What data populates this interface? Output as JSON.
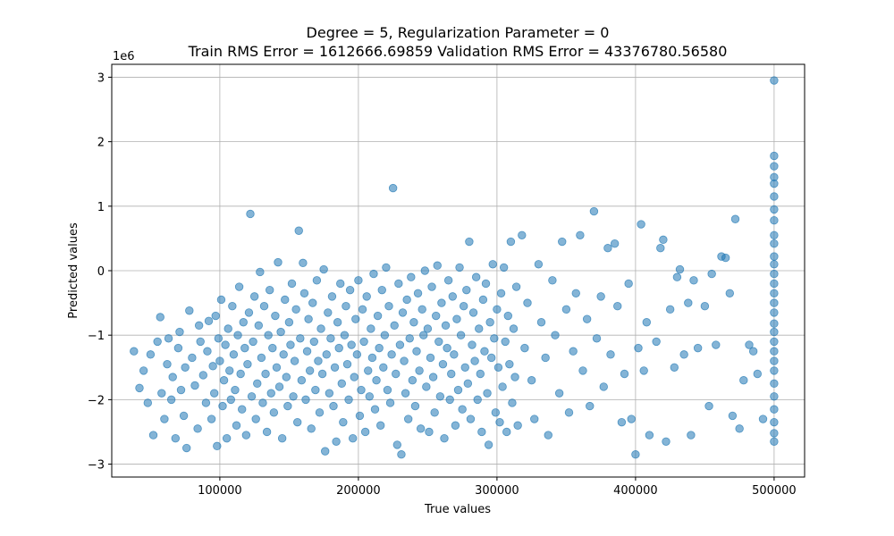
{
  "chart_data": {
    "type": "scatter",
    "title_lines": [
      "Degree = 5, Regularization Parameter = 0",
      "Train RMS Error = 1612666.69859 Validation RMS Error = 43376780.56580"
    ],
    "xlabel": "True values",
    "ylabel": "Predicted values",
    "y_offset_label": "1e6",
    "xlim": [
      22000,
      522000
    ],
    "ylim": [
      -3.2,
      3.2
    ],
    "x_ticks": [
      100000,
      200000,
      300000,
      400000,
      500000
    ],
    "x_tick_labels": [
      "100000",
      "200000",
      "300000",
      "400000",
      "500000"
    ],
    "y_ticks": [
      -3,
      -2,
      -1,
      0,
      1,
      2,
      3
    ],
    "y_tick_labels": [
      "−3",
      "−2",
      "−1",
      "0",
      "1",
      "2",
      "3"
    ],
    "grid": true,
    "marker_color": "#1f77b4",
    "marker_alpha": 0.55,
    "points": [
      [
        38000,
        -1.25
      ],
      [
        42000,
        -1.82
      ],
      [
        45000,
        -1.55
      ],
      [
        48000,
        -2.05
      ],
      [
        50000,
        -1.3
      ],
      [
        52000,
        -2.55
      ],
      [
        55000,
        -1.1
      ],
      [
        57000,
        -0.72
      ],
      [
        58000,
        -1.9
      ],
      [
        60000,
        -2.3
      ],
      [
        62000,
        -1.45
      ],
      [
        63000,
        -1.05
      ],
      [
        65000,
        -2.0
      ],
      [
        66000,
        -1.65
      ],
      [
        68000,
        -2.6
      ],
      [
        70000,
        -1.2
      ],
      [
        71000,
        -0.95
      ],
      [
        72000,
        -1.85
      ],
      [
        74000,
        -2.25
      ],
      [
        75000,
        -1.5
      ],
      [
        76000,
        -2.75
      ],
      [
        78000,
        -0.62
      ],
      [
        80000,
        -1.35
      ],
      [
        82000,
        -1.78
      ],
      [
        84000,
        -2.45
      ],
      [
        85000,
        -0.85
      ],
      [
        86000,
        -1.1
      ],
      [
        88000,
        -1.62
      ],
      [
        90000,
        -2.05
      ],
      [
        91000,
        -1.25
      ],
      [
        92000,
        -0.78
      ],
      [
        94000,
        -2.3
      ],
      [
        95000,
        -1.48
      ],
      [
        96000,
        -1.9
      ],
      [
        97000,
        -0.7
      ],
      [
        98000,
        -2.72
      ],
      [
        99000,
        -1.05
      ],
      [
        100000,
        -1.4
      ],
      [
        101000,
        -0.45
      ],
      [
        102000,
        -2.1
      ],
      [
        103000,
        -1.7
      ],
      [
        104000,
        -1.15
      ],
      [
        105000,
        -2.6
      ],
      [
        106000,
        -0.9
      ],
      [
        107000,
        -1.55
      ],
      [
        108000,
        -2.0
      ],
      [
        109000,
        -0.55
      ],
      [
        110000,
        -1.3
      ],
      [
        111000,
        -1.85
      ],
      [
        112000,
        -2.4
      ],
      [
        113000,
        -1.0
      ],
      [
        114000,
        -0.25
      ],
      [
        115000,
        -1.6
      ],
      [
        116000,
        -2.15
      ],
      [
        117000,
        -0.8
      ],
      [
        118000,
        -1.2
      ],
      [
        119000,
        -2.55
      ],
      [
        120000,
        -1.45
      ],
      [
        121000,
        -0.65
      ],
      [
        122000,
        0.88
      ],
      [
        123000,
        -1.95
      ],
      [
        124000,
        -1.1
      ],
      [
        125000,
        -0.4
      ],
      [
        126000,
        -2.3
      ],
      [
        127000,
        -1.75
      ],
      [
        128000,
        -0.85
      ],
      [
        129000,
        -0.02
      ],
      [
        130000,
        -1.35
      ],
      [
        131000,
        -2.05
      ],
      [
        132000,
        -0.55
      ],
      [
        133000,
        -1.6
      ],
      [
        134000,
        -2.5
      ],
      [
        135000,
        -1.0
      ],
      [
        136000,
        -0.3
      ],
      [
        137000,
        -1.9
      ],
      [
        138000,
        -1.2
      ],
      [
        139000,
        -2.2
      ],
      [
        140000,
        -0.7
      ],
      [
        141000,
        -1.5
      ],
      [
        142000,
        0.13
      ],
      [
        143000,
        -1.8
      ],
      [
        144000,
        -0.95
      ],
      [
        145000,
        -2.6
      ],
      [
        146000,
        -1.3
      ],
      [
        147000,
        -0.45
      ],
      [
        148000,
        -1.65
      ],
      [
        149000,
        -2.1
      ],
      [
        150000,
        -0.8
      ],
      [
        151000,
        -1.15
      ],
      [
        152000,
        -0.2
      ],
      [
        153000,
        -1.95
      ],
      [
        154000,
        -1.4
      ],
      [
        155000,
        -0.6
      ],
      [
        156000,
        -2.35
      ],
      [
        157000,
        0.62
      ],
      [
        158000,
        -1.05
      ],
      [
        159000,
        -1.7
      ],
      [
        160000,
        0.12
      ],
      [
        161000,
        -0.35
      ],
      [
        162000,
        -2.0
      ],
      [
        163000,
        -1.25
      ],
      [
        164000,
        -0.75
      ],
      [
        165000,
        -1.55
      ],
      [
        166000,
        -2.45
      ],
      [
        167000,
        -0.5
      ],
      [
        168000,
        -1.1
      ],
      [
        169000,
        -1.85
      ],
      [
        170000,
        -0.15
      ],
      [
        171000,
        -1.4
      ],
      [
        172000,
        -2.2
      ],
      [
        173000,
        -0.9
      ],
      [
        174000,
        -1.6
      ],
      [
        175000,
        0.02
      ],
      [
        176000,
        -2.8
      ],
      [
        177000,
        -1.3
      ],
      [
        178000,
        -0.65
      ],
      [
        179000,
        -1.9
      ],
      [
        180000,
        -1.05
      ],
      [
        181000,
        -0.4
      ],
      [
        182000,
        -2.1
      ],
      [
        183000,
        -1.5
      ],
      [
        184000,
        -2.65
      ],
      [
        185000,
        -0.8
      ],
      [
        186000,
        -1.2
      ],
      [
        187000,
        -0.2
      ],
      [
        188000,
        -1.75
      ],
      [
        189000,
        -2.35
      ],
      [
        190000,
        -1.0
      ],
      [
        191000,
        -0.55
      ],
      [
        192000,
        -1.45
      ],
      [
        193000,
        -2.0
      ],
      [
        194000,
        -0.3
      ],
      [
        195000,
        -1.15
      ],
      [
        196000,
        -2.6
      ],
      [
        197000,
        -1.65
      ],
      [
        198000,
        -0.75
      ],
      [
        199000,
        -1.3
      ],
      [
        200000,
        -0.15
      ],
      [
        201000,
        -2.25
      ],
      [
        202000,
        -1.85
      ],
      [
        203000,
        -0.6
      ],
      [
        204000,
        -1.1
      ],
      [
        205000,
        -2.5
      ],
      [
        206000,
        -0.4
      ],
      [
        207000,
        -1.55
      ],
      [
        208000,
        -1.95
      ],
      [
        209000,
        -0.9
      ],
      [
        210000,
        -1.35
      ],
      [
        211000,
        -0.05
      ],
      [
        212000,
        -2.15
      ],
      [
        213000,
        -1.7
      ],
      [
        214000,
        -0.7
      ],
      [
        215000,
        -1.2
      ],
      [
        216000,
        -2.4
      ],
      [
        217000,
        -0.3
      ],
      [
        218000,
        -1.5
      ],
      [
        219000,
        -1.0
      ],
      [
        220000,
        0.05
      ],
      [
        221000,
        -1.85
      ],
      [
        222000,
        -0.55
      ],
      [
        223000,
        -2.05
      ],
      [
        224000,
        -1.3
      ],
      [
        225000,
        1.28
      ],
      [
        226000,
        -0.85
      ],
      [
        227000,
        -1.6
      ],
      [
        228000,
        -2.7
      ],
      [
        229000,
        -0.2
      ],
      [
        230000,
        -1.15
      ],
      [
        231000,
        -2.85
      ],
      [
        232000,
        -0.65
      ],
      [
        233000,
        -1.4
      ],
      [
        234000,
        -1.9
      ],
      [
        235000,
        -0.45
      ],
      [
        236000,
        -2.3
      ],
      [
        237000,
        -1.05
      ],
      [
        238000,
        -0.1
      ],
      [
        239000,
        -1.7
      ],
      [
        240000,
        -0.8
      ],
      [
        241000,
        -2.1
      ],
      [
        242000,
        -1.25
      ],
      [
        243000,
        -0.35
      ],
      [
        244000,
        -1.55
      ],
      [
        245000,
        -2.45
      ],
      [
        246000,
        -0.6
      ],
      [
        247000,
        -1.0
      ],
      [
        248000,
        0.0
      ],
      [
        249000,
        -1.8
      ],
      [
        250000,
        -0.9
      ],
      [
        251000,
        -2.5
      ],
      [
        252000,
        -1.35
      ],
      [
        253000,
        -0.25
      ],
      [
        254000,
        -1.65
      ],
      [
        255000,
        -2.2
      ],
      [
        256000,
        -0.7
      ],
      [
        257000,
        0.08
      ],
      [
        258000,
        -1.1
      ],
      [
        259000,
        -1.95
      ],
      [
        260000,
        -0.5
      ],
      [
        261000,
        -1.45
      ],
      [
        262000,
        -2.6
      ],
      [
        263000,
        -0.85
      ],
      [
        264000,
        -1.2
      ],
      [
        265000,
        -0.15
      ],
      [
        266000,
        -2.0
      ],
      [
        267000,
        -1.6
      ],
      [
        268000,
        -0.4
      ],
      [
        269000,
        -1.3
      ],
      [
        270000,
        -2.4
      ],
      [
        271000,
        -0.75
      ],
      [
        272000,
        -1.85
      ],
      [
        273000,
        0.05
      ],
      [
        274000,
        -1.0
      ],
      [
        275000,
        -2.15
      ],
      [
        276000,
        -0.55
      ],
      [
        277000,
        -1.5
      ],
      [
        278000,
        -0.3
      ],
      [
        279000,
        -1.75
      ],
      [
        280000,
        0.45
      ],
      [
        281000,
        -2.3
      ],
      [
        282000,
        -1.15
      ],
      [
        283000,
        -0.65
      ],
      [
        284000,
        -1.4
      ],
      [
        285000,
        -0.1
      ],
      [
        286000,
        -2.0
      ],
      [
        287000,
        -0.9
      ],
      [
        288000,
        -1.6
      ],
      [
        289000,
        -2.5
      ],
      [
        290000,
        -0.45
      ],
      [
        291000,
        -1.25
      ],
      [
        292000,
        -0.2
      ],
      [
        293000,
        -1.9
      ],
      [
        294000,
        -2.7
      ],
      [
        295000,
        -0.8
      ],
      [
        296000,
        -1.35
      ],
      [
        297000,
        0.1
      ],
      [
        298000,
        -1.05
      ],
      [
        299000,
        -2.2
      ],
      [
        300000,
        -0.6
      ],
      [
        301000,
        -1.5
      ],
      [
        302000,
        -2.35
      ],
      [
        303000,
        -0.35
      ],
      [
        304000,
        -1.8
      ],
      [
        305000,
        0.05
      ],
      [
        306000,
        -1.1
      ],
      [
        307000,
        -2.5
      ],
      [
        308000,
        -0.7
      ],
      [
        309000,
        -1.45
      ],
      [
        310000,
        0.45
      ],
      [
        311000,
        -2.05
      ],
      [
        312000,
        -0.9
      ],
      [
        313000,
        -1.65
      ],
      [
        314000,
        -0.25
      ],
      [
        315000,
        -2.4
      ],
      [
        318000,
        0.55
      ],
      [
        320000,
        -1.2
      ],
      [
        322000,
        -0.5
      ],
      [
        325000,
        -1.7
      ],
      [
        327000,
        -2.3
      ],
      [
        330000,
        0.1
      ],
      [
        332000,
        -0.8
      ],
      [
        335000,
        -1.35
      ],
      [
        337000,
        -2.55
      ],
      [
        340000,
        -0.15
      ],
      [
        342000,
        -1.0
      ],
      [
        345000,
        -1.9
      ],
      [
        347000,
        0.45
      ],
      [
        350000,
        -0.6
      ],
      [
        352000,
        -2.2
      ],
      [
        355000,
        -1.25
      ],
      [
        357000,
        -0.35
      ],
      [
        360000,
        0.55
      ],
      [
        362000,
        -1.55
      ],
      [
        365000,
        -0.75
      ],
      [
        367000,
        -2.1
      ],
      [
        370000,
        0.92
      ],
      [
        372000,
        -1.05
      ],
      [
        375000,
        -0.4
      ],
      [
        377000,
        -1.8
      ],
      [
        380000,
        0.35
      ],
      [
        382000,
        -1.3
      ],
      [
        385000,
        0.42
      ],
      [
        387000,
        -0.55
      ],
      [
        390000,
        -2.35
      ],
      [
        392000,
        -1.6
      ],
      [
        395000,
        -0.2
      ],
      [
        397000,
        -2.3
      ],
      [
        400000,
        -2.85
      ],
      [
        402000,
        -1.2
      ],
      [
        404000,
        0.72
      ],
      [
        406000,
        -1.55
      ],
      [
        408000,
        -0.8
      ],
      [
        410000,
        -2.55
      ],
      [
        415000,
        -1.1
      ],
      [
        418000,
        0.35
      ],
      [
        420000,
        0.48
      ],
      [
        422000,
        -2.65
      ],
      [
        425000,
        -0.6
      ],
      [
        428000,
        -1.5
      ],
      [
        430000,
        -0.1
      ],
      [
        432000,
        0.02
      ],
      [
        435000,
        -1.3
      ],
      [
        438000,
        -0.5
      ],
      [
        440000,
        -2.55
      ],
      [
        442000,
        -0.15
      ],
      [
        445000,
        -1.2
      ],
      [
        450000,
        -0.55
      ],
      [
        453000,
        -2.1
      ],
      [
        455000,
        -0.05
      ],
      [
        458000,
        -1.15
      ],
      [
        462000,
        0.22
      ],
      [
        465000,
        0.2
      ],
      [
        468000,
        -0.35
      ],
      [
        470000,
        -2.25
      ],
      [
        472000,
        0.8
      ],
      [
        475000,
        -2.45
      ],
      [
        478000,
        -1.7
      ],
      [
        482000,
        -1.15
      ],
      [
        485000,
        -1.25
      ],
      [
        488000,
        -1.6
      ],
      [
        492000,
        -2.3
      ],
      [
        500000,
        2.95
      ],
      [
        500000,
        1.78
      ],
      [
        500000,
        1.62
      ],
      [
        500000,
        1.45
      ],
      [
        500000,
        1.35
      ],
      [
        500000,
        1.15
      ],
      [
        500000,
        0.95
      ],
      [
        500000,
        0.78
      ],
      [
        500000,
        0.55
      ],
      [
        500000,
        0.42
      ],
      [
        500000,
        0.22
      ],
      [
        500000,
        0.1
      ],
      [
        500000,
        -0.05
      ],
      [
        500000,
        -0.2
      ],
      [
        500000,
        -0.35
      ],
      [
        500000,
        -0.5
      ],
      [
        500000,
        -0.65
      ],
      [
        500000,
        -0.82
      ],
      [
        500000,
        -0.95
      ],
      [
        500000,
        -1.1
      ],
      [
        500000,
        -1.25
      ],
      [
        500000,
        -1.4
      ],
      [
        500000,
        -1.55
      ],
      [
        500000,
        -1.75
      ],
      [
        500000,
        -1.95
      ],
      [
        500000,
        -2.15
      ],
      [
        500000,
        -2.35
      ],
      [
        500000,
        -2.52
      ],
      [
        500000,
        -2.65
      ]
    ]
  }
}
